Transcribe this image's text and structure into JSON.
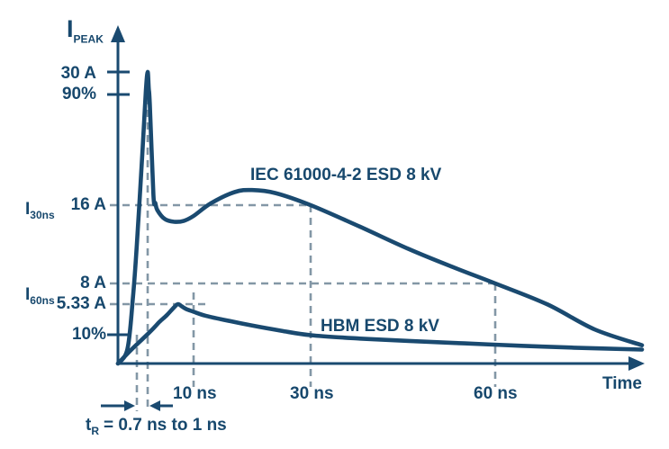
{
  "figure": {
    "background": "#ffffff",
    "description": "ESD current waveform comparison: IEC 61000-4-2 contact discharge vs Human Body Model at 8 kV"
  },
  "colors": {
    "line": "#1a4a70",
    "text": "#17486d",
    "dashed_guide": "#8397a6",
    "background": "#ffffff"
  },
  "chart_data": {
    "type": "line",
    "title": "",
    "xlabel": "Time",
    "ylabel": "IPEAK",
    "x_unit": "ns",
    "y_unit": "A",
    "xlim": [
      0,
      88
    ],
    "ylim": [
      0,
      33
    ],
    "grid": false,
    "legend_position": "inline-labels",
    "x_tick_labels": [
      "10 ns",
      "30 ns",
      "60 ns"
    ],
    "x_tick_values_ns": [
      10,
      30,
      60
    ],
    "y_tick_labels": [
      "30 A",
      "90%",
      "16 A",
      "8 A",
      "5.33 A",
      "10%"
    ],
    "y_tick_values_A": [
      30,
      27,
      16,
      8,
      5.33,
      3
    ],
    "key_measurements": {
      "iec_peak_A": 30,
      "I_30ns_A": 16,
      "I_60ns_A": 8,
      "hbm_peak_A": 5.33,
      "rise_time": "0.7 ns to 1 ns"
    },
    "series": [
      {
        "name": "IEC 61000-4-2 ESD 8 kV",
        "points": [
          [
            0,
            0
          ],
          [
            0.35,
            1.5
          ],
          [
            0.55,
            6
          ],
          [
            0.7,
            12
          ],
          [
            0.85,
            21
          ],
          [
            0.95,
            27.5
          ],
          [
            1,
            30
          ],
          [
            1.15,
            27.8
          ],
          [
            1.3,
            26
          ],
          [
            1.8,
            17
          ],
          [
            2.1,
            16.2
          ],
          [
            2.5,
            15.5
          ],
          [
            4,
            14.6
          ],
          [
            6,
            14.3
          ],
          [
            8,
            14.4
          ],
          [
            10,
            14.9
          ],
          [
            13,
            16.2
          ],
          [
            17,
            17.3
          ],
          [
            20,
            17.5
          ],
          [
            24,
            17.2
          ],
          [
            30,
            16
          ],
          [
            38,
            13.8
          ],
          [
            46,
            11.5
          ],
          [
            53,
            9.7
          ],
          [
            60,
            8
          ],
          [
            70,
            5.3
          ],
          [
            79,
            3.4
          ],
          [
            88,
            1.9
          ]
        ]
      },
      {
        "name": "HBM ESD 8 kV",
        "points": [
          [
            0,
            0
          ],
          [
            0.5,
            1.45
          ],
          [
            1,
            3.05
          ],
          [
            2,
            3.6
          ],
          [
            3,
            4.0
          ],
          [
            4.5,
            4.5
          ],
          [
            6,
            5.1
          ],
          [
            6.8,
            5.33
          ],
          [
            7.6,
            5.15
          ],
          [
            8.5,
            4.95
          ],
          [
            10,
            4.75
          ],
          [
            12,
            4.45
          ],
          [
            15,
            4.15
          ],
          [
            20,
            3.7
          ],
          [
            25,
            3.3
          ],
          [
            30,
            2.95
          ],
          [
            38,
            2.6
          ],
          [
            46,
            2.35
          ],
          [
            55,
            2.1
          ],
          [
            65,
            1.85
          ],
          [
            75,
            1.65
          ],
          [
            88,
            1.45
          ]
        ]
      }
    ]
  },
  "labels": {
    "y_axis_title": {
      "main": "I",
      "sub": "PEAK"
    },
    "y_30a": "30 A",
    "y_90pct": "90%",
    "y_16a": "16 A",
    "y_8a": "8 A",
    "y_533a": "5.33 A",
    "y_10pct": "10%",
    "i_30ns": {
      "main": "I",
      "sub": "30ns"
    },
    "i_60ns": {
      "main": "I",
      "sub": "60ns"
    },
    "x_10ns": "10 ns",
    "x_30ns": "30 ns",
    "x_60ns": "60 ns",
    "x_axis_title": "Time",
    "rise_time": {
      "main": "t",
      "sub": "R",
      "rest": "= 0.7 ns to 1 ns"
    }
  }
}
